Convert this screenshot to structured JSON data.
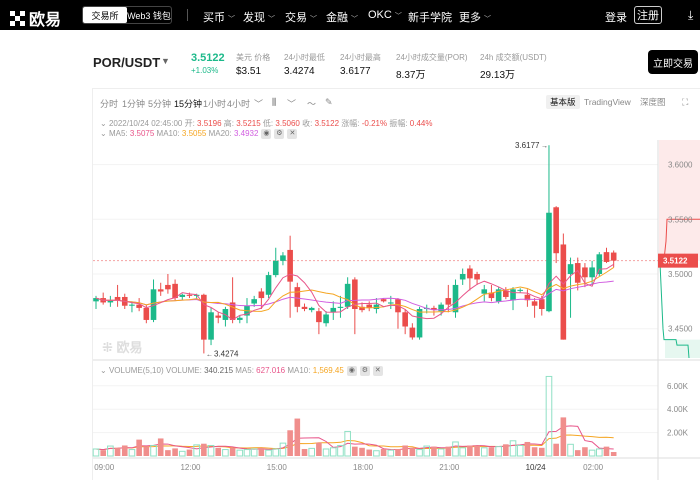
{
  "nav": {
    "brand": "欧易",
    "seg": [
      "交易所",
      "Web3 钱包"
    ],
    "menu": [
      "买币",
      "发现",
      "交易",
      "金融",
      "OKC",
      "新手学院",
      "更多"
    ],
    "menu_has_chevron": [
      true,
      true,
      true,
      true,
      true,
      false,
      true
    ],
    "login": "登录",
    "register": "注册"
  },
  "ticker": {
    "pair": "POR/USDT",
    "last": "3.5122",
    "change": "+1.03%",
    "stats": [
      {
        "label": "美元 价格",
        "value": "$3.51"
      },
      {
        "label": "24小时最低",
        "value": "3.4274"
      },
      {
        "label": "24小时最高",
        "value": "3.6177"
      },
      {
        "label": "24小时成交量(POR)",
        "value": "8.37万"
      },
      {
        "label": "24h 成交额(USDT)",
        "value": "29.13万"
      }
    ],
    "trade_button": "立即交易"
  },
  "toolbar": {
    "intervals": [
      "分时",
      "1分钟",
      "5分钟",
      "15分钟",
      "1小时",
      "4小时"
    ],
    "active_interval": "15分钟",
    "views": [
      "基本版",
      "TradingView",
      "深度图"
    ],
    "active_view": "基本版"
  },
  "ohlc": {
    "time": "2022/10/24 02:45:00",
    "open_label": "开:",
    "open": "3.5196",
    "high_label": "高:",
    "high": "3.5215",
    "low_label": "低:",
    "low": "3.5060",
    "close_label": "收:",
    "close": "3.5122",
    "chg_label": "涨幅:",
    "chg": "-0.21%",
    "amp_label": "振幅:",
    "amp": "0.44%"
  },
  "ma": {
    "ma5_label": "MA5:",
    "ma5": "3.5075",
    "ma10_label": "MA10:",
    "ma10": "3.5055",
    "ma20_label": "MA20:",
    "ma20": "3.4932"
  },
  "vol": {
    "title": "VOLUME(5,10)",
    "vol_label": "VOLUME:",
    "vol": "340.215",
    "ma5_label": "MA5:",
    "ma5": "627.016",
    "ma10_label": "MA10:",
    "ma10": "1,569.45"
  },
  "watermark": "欧易",
  "colors": {
    "up": "#1cb98a",
    "down": "#eb4d4b",
    "ma5": "#e8558a",
    "ma10": "#f5a623",
    "ma20": "#d15de0"
  },
  "chart_data": {
    "type": "candlestick",
    "interval": "15m",
    "x_ticks": [
      "09:00",
      "12:00",
      "15:00",
      "18:00",
      "21:00",
      "10/24",
      "02:00"
    ],
    "y_ticks": [
      "3.6000",
      "3.5500",
      "3.5000",
      "3.4500"
    ],
    "ylim": [
      3.425,
      3.63
    ],
    "last_price": "3.5122",
    "high_marker": "3.6177",
    "low_marker": "3.4274",
    "candles": [
      [
        3.475,
        3.48,
        3.468,
        3.478
      ],
      [
        3.478,
        3.483,
        3.472,
        3.474
      ],
      [
        3.474,
        3.48,
        3.47,
        3.476
      ],
      [
        3.479,
        3.49,
        3.47,
        3.476
      ],
      [
        3.479,
        3.482,
        3.468,
        3.471
      ],
      [
        3.471,
        3.475,
        3.465,
        3.472
      ],
      [
        3.472,
        3.478,
        3.466,
        3.469
      ],
      [
        3.469,
        3.472,
        3.455,
        3.458
      ],
      [
        3.458,
        3.495,
        3.456,
        3.486
      ],
      [
        3.486,
        3.492,
        3.48,
        3.484
      ],
      [
        3.49,
        3.5,
        3.482,
        3.486
      ],
      [
        3.491,
        3.495,
        3.476,
        3.478
      ],
      [
        3.479,
        3.482,
        3.476,
        3.481
      ],
      [
        3.481,
        3.483,
        3.478,
        3.48
      ],
      [
        3.48,
        3.482,
        3.477,
        3.481
      ],
      [
        3.481,
        3.482,
        3.4274,
        3.44
      ],
      [
        3.44,
        3.469,
        3.435,
        3.465
      ],
      [
        3.462,
        3.465,
        3.455,
        3.46
      ],
      [
        3.458,
        3.47,
        3.452,
        3.468
      ],
      [
        3.474,
        3.497,
        3.455,
        3.458
      ],
      [
        3.458,
        3.462,
        3.455,
        3.46
      ],
      [
        3.462,
        3.478,
        3.455,
        3.471
      ],
      [
        3.473,
        3.48,
        3.47,
        3.477
      ],
      [
        3.484,
        3.487,
        3.468,
        3.478
      ],
      [
        3.481,
        3.502,
        3.478,
        3.499
      ],
      [
        3.499,
        3.524,
        3.497,
        3.512
      ],
      [
        3.512,
        3.52,
        3.508,
        3.517
      ],
      [
        3.522,
        3.535,
        3.46,
        3.493
      ],
      [
        3.488,
        3.492,
        3.465,
        3.47
      ],
      [
        3.47,
        3.473,
        3.466,
        3.468
      ],
      [
        3.467,
        3.47,
        3.465,
        3.469
      ],
      [
        3.466,
        3.469,
        3.445,
        3.456
      ],
      [
        3.455,
        3.466,
        3.452,
        3.463
      ],
      [
        3.465,
        3.475,
        3.458,
        3.469
      ],
      [
        3.469,
        3.48,
        3.46,
        3.47
      ],
      [
        3.47,
        3.497,
        3.468,
        3.491
      ],
      [
        3.495,
        3.497,
        3.445,
        3.468
      ],
      [
        3.47,
        3.474,
        3.465,
        3.467
      ],
      [
        3.472,
        3.475,
        3.466,
        3.469
      ],
      [
        3.468,
        3.478,
        3.464,
        3.472
      ],
      [
        3.477,
        3.478,
        3.474,
        3.475
      ],
      [
        3.473,
        3.48,
        3.468,
        3.474
      ],
      [
        3.477,
        3.478,
        3.45,
        3.465
      ],
      [
        3.465,
        3.468,
        3.445,
        3.452
      ],
      [
        3.451,
        3.455,
        3.44,
        3.442
      ],
      [
        3.442,
        3.47,
        3.44,
        3.468
      ],
      [
        3.468,
        3.472,
        3.464,
        3.469
      ],
      [
        3.469,
        3.471,
        3.462,
        3.467
      ],
      [
        3.466,
        3.474,
        3.462,
        3.472
      ],
      [
        3.478,
        3.49,
        3.465,
        3.472
      ],
      [
        3.465,
        3.495,
        3.46,
        3.49
      ],
      [
        3.495,
        3.505,
        3.49,
        3.5
      ],
      [
        3.505,
        3.508,
        3.485,
        3.496
      ],
      [
        3.5,
        3.502,
        3.49,
        3.495
      ],
      [
        3.482,
        3.49,
        3.475,
        3.486
      ],
      [
        3.483,
        3.49,
        3.475,
        3.478
      ],
      [
        3.475,
        3.488,
        3.473,
        3.486
      ],
      [
        3.485,
        3.488,
        3.477,
        3.479
      ],
      [
        3.476,
        3.488,
        3.467,
        3.486
      ],
      [
        3.485,
        3.487,
        3.483,
        3.4855
      ],
      [
        3.481,
        3.486,
        3.47,
        3.476
      ],
      [
        3.475,
        3.478,
        3.46,
        3.471
      ],
      [
        3.477,
        3.48,
        3.462,
        3.468
      ],
      [
        3.466,
        3.6177,
        3.465,
        3.556
      ],
      [
        3.561,
        3.562,
        3.51,
        3.519
      ],
      [
        3.527,
        3.537,
        3.44,
        3.44
      ],
      [
        3.5,
        3.515,
        3.46,
        3.509
      ],
      [
        3.51,
        3.515,
        3.485,
        3.492
      ],
      [
        3.506,
        3.51,
        3.488,
        3.497
      ],
      [
        3.497,
        3.512,
        3.49,
        3.506
      ],
      [
        3.5,
        3.52,
        3.498,
        3.518
      ],
      [
        3.52,
        3.524,
        3.51,
        3.511
      ],
      [
        3.5196,
        3.5215,
        3.506,
        3.5122
      ]
    ],
    "volume_ticks": [
      "6.00K",
      "4.00K",
      "2.00K"
    ],
    "volume_k": [
      0.6,
      0.5,
      0.85,
      0.7,
      0.9,
      0.55,
      1.4,
      0.8,
      0.9,
      1.5,
      0.5,
      0.65,
      0.4,
      0.55,
      0.95,
      1.05,
      0.9,
      0.7,
      0.55,
      0.7,
      0.5,
      0.55,
      0.6,
      0.7,
      0.5,
      0.6,
      1.1,
      2.2,
      3.2,
      0.6,
      0.65,
      1.15,
      0.6,
      0.7,
      0.9,
      2.1,
      0.8,
      0.7,
      0.55,
      0.45,
      0.6,
      0.5,
      0.6,
      0.9,
      0.7,
      0.55,
      0.85,
      0.8,
      0.6,
      0.8,
      1.2,
      0.7,
      0.9,
      0.9,
      0.7,
      0.75,
      0.8,
      1.0,
      1.3,
      0.9,
      1.2,
      0.75,
      0.7,
      6.8,
      1.05,
      3.3,
      1.0,
      0.5,
      0.75,
      0.5,
      0.6,
      0.8,
      0.34
    ]
  }
}
